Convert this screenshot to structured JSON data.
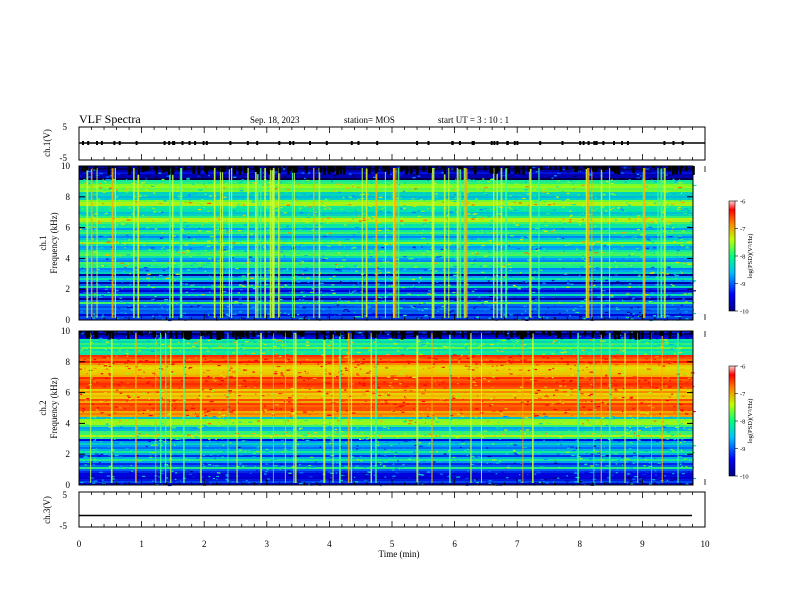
{
  "header": {
    "title": "VLF Spectra",
    "date": "Sep. 18, 2023",
    "station": "station= MOS",
    "start": "start  UT  =   3  : 10 : 1"
  },
  "colors": {
    "low": "#00008f",
    "mid_low": "#0090ff",
    "mid": "#00e0a0",
    "mid_high": "#80ff40",
    "high": "#ff2000"
  },
  "chart_data": [
    {
      "type": "line",
      "name": "ch1-waveform",
      "ylabel": "ch.1(V)",
      "ylim": [
        -5,
        5
      ],
      "y_ticks": [
        "5",
        "-5"
      ],
      "x": [
        0,
        10
      ],
      "values": [
        0,
        0
      ]
    },
    {
      "type": "heatmap",
      "name": "ch1-spectrogram",
      "ylabel": "ch.1\nFrequency (kHz)",
      "ylim": [
        0,
        10
      ],
      "xlim": [
        0,
        10
      ],
      "y_ticks": [
        "0",
        "2",
        "4",
        "6",
        "8",
        "10"
      ],
      "colorbar": {
        "label": "log(PSD)(V²/Hz)",
        "range": [
          -10,
          -6
        ],
        "ticks": [
          "-6",
          "-7",
          "-8",
          "-9",
          "-10"
        ]
      }
    },
    {
      "type": "heatmap",
      "name": "ch2-spectrogram",
      "ylabel": "ch.2\nFrequency (kHz)",
      "ylim": [
        0,
        10
      ],
      "xlim": [
        0,
        10
      ],
      "y_ticks": [
        "0",
        "2",
        "4",
        "6",
        "8",
        "10"
      ],
      "colorbar": {
        "label": "log(PSD)(V²/Hz)",
        "range": [
          -10,
          -6
        ],
        "ticks": [
          "-6",
          "-7",
          "-8",
          "-9",
          "-10"
        ]
      }
    },
    {
      "type": "line",
      "name": "ch3-waveform",
      "ylabel": "ch.3(V)",
      "ylim": [
        -5,
        5
      ],
      "y_ticks": [
        "5",
        "-5"
      ],
      "x": [
        0,
        10
      ],
      "values": [
        -1.7,
        -1.7
      ]
    }
  ],
  "x_axis": {
    "label": "Time (min)",
    "xlim": [
      0,
      10
    ],
    "ticks": [
      "0",
      "1",
      "2",
      "3",
      "4",
      "5",
      "6",
      "7",
      "8",
      "9",
      "10"
    ]
  }
}
